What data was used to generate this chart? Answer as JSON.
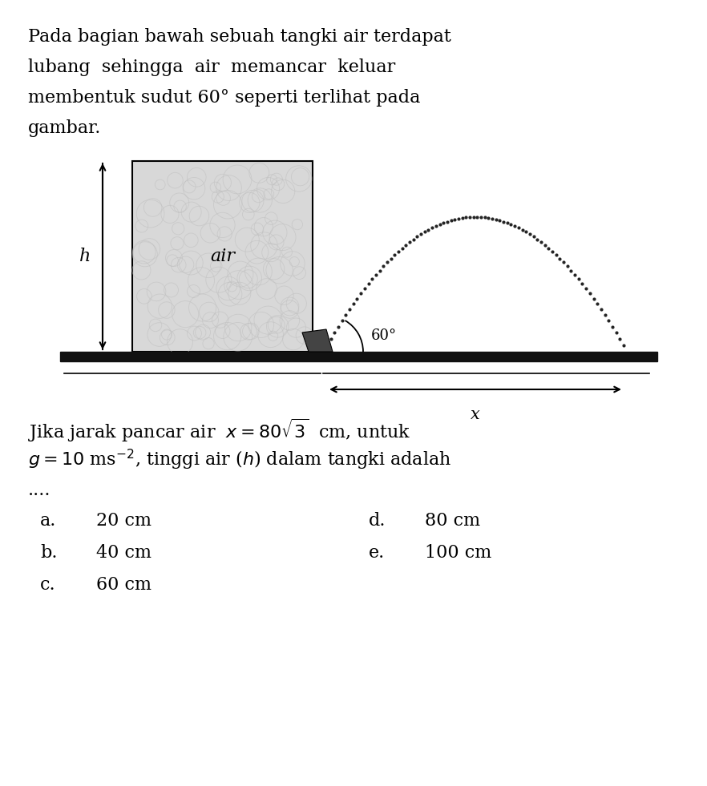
{
  "background_color": "#ffffff",
  "para_lines": [
    "Pada bagian bawah sebuah tangki air terdapat",
    "lubang  sehingga  air  memancar  keluar",
    "membentuk sudut 60° seperti terlihat pada",
    "gambar."
  ],
  "q_line1": "Jika jarak pancar air  $x = 80\\sqrt{3}$  cm, untuk",
  "q_line2": "$g = 10$ ms$^{-2}$, tinggi air ($h$) dalam tangki adalah",
  "q_line3": "....",
  "answers_left_letters": [
    "a.",
    "b.",
    "c."
  ],
  "answers_left_vals": [
    "20 cm",
    "40 cm",
    "60 cm"
  ],
  "answers_right_letters": [
    "d.",
    "e."
  ],
  "answers_right_vals": [
    "80 cm",
    "100 cm"
  ],
  "h_label": "h",
  "air_label": "air",
  "angle_label": "60°",
  "x_label": "x",
  "ground_color": "#111111",
  "nozzle_color": "#444444",
  "tank_fill": "#d8d8d8",
  "dotted_color": "#222222",
  "font_size_para": 16,
  "font_size_q": 16,
  "font_size_ans": 16,
  "font_size_diag": 13
}
